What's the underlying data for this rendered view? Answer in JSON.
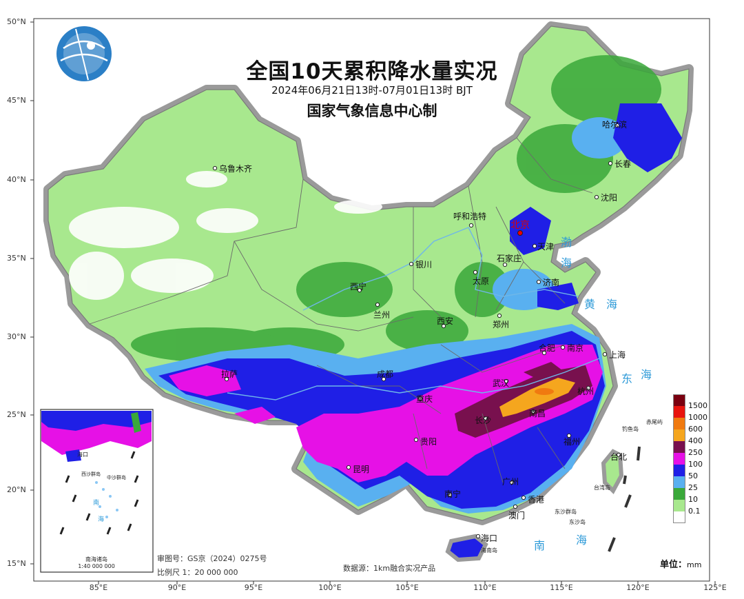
{
  "title": "全国10天累积降水量实况",
  "subtitle": "2024年06月21日13时-07月01日13时 BJT",
  "organization": "国家气象信息中心制",
  "legend": {
    "unit_label": "单位：",
    "unit": "mm",
    "levels": [
      {
        "label": "1500",
        "color": "#7a0010"
      },
      {
        "label": "1000",
        "color": "#e8140e"
      },
      {
        "label": "600",
        "color": "#f07a10"
      },
      {
        "label": "400",
        "color": "#f5a61e"
      },
      {
        "label": "250",
        "color": "#78104e"
      },
      {
        "label": "100",
        "color": "#e611e6"
      },
      {
        "label": "50",
        "color": "#1f1fe6"
      },
      {
        "label": "25",
        "color": "#59b0f0"
      },
      {
        "label": "10",
        "color": "#3aa83a"
      },
      {
        "label": "0.1",
        "color": "#a8e88e"
      }
    ],
    "bottom_color": "#ffffff"
  },
  "axes": {
    "lat_labels": [
      "50°N",
      "45°N",
      "40°N",
      "35°N",
      "30°N",
      "25°N",
      "20°N",
      "15°N"
    ],
    "lon_labels": [
      "85°E",
      "90°E",
      "95°E",
      "100°E",
      "105°E",
      "110°E",
      "115°E",
      "120°E",
      "125°E"
    ]
  },
  "cities": [
    {
      "name": "乌鲁木齐"
    },
    {
      "name": "呼和浩特"
    },
    {
      "name": "北京",
      "capital": true
    },
    {
      "name": "天津"
    },
    {
      "name": "哈尔滨"
    },
    {
      "name": "长春"
    },
    {
      "name": "沈阳"
    },
    {
      "name": "石家庄"
    },
    {
      "name": "太原"
    },
    {
      "name": "济南"
    },
    {
      "name": "银川"
    },
    {
      "name": "西宁"
    },
    {
      "name": "兰州"
    },
    {
      "name": "西安"
    },
    {
      "name": "郑州"
    },
    {
      "name": "合肥"
    },
    {
      "name": "南京"
    },
    {
      "name": "上海"
    },
    {
      "name": "杭州"
    },
    {
      "name": "武汉"
    },
    {
      "name": "长沙"
    },
    {
      "name": "南昌"
    },
    {
      "name": "福州"
    },
    {
      "name": "台北"
    },
    {
      "name": "成都"
    },
    {
      "name": "重庆"
    },
    {
      "name": "贵阳"
    },
    {
      "name": "昆明"
    },
    {
      "name": "南宁"
    },
    {
      "name": "广州"
    },
    {
      "name": "香港"
    },
    {
      "name": "澳门"
    },
    {
      "name": "海口"
    },
    {
      "name": "拉萨"
    }
  ],
  "seas": [
    {
      "name": "渤"
    },
    {
      "name": "海"
    },
    {
      "name": "黄"
    },
    {
      "name": "海"
    },
    {
      "name": "东"
    },
    {
      "name": "海"
    },
    {
      "name": "南"
    },
    {
      "name": "海"
    }
  ],
  "islands": [
    {
      "name": "钓鱼岛"
    },
    {
      "name": "赤尾屿"
    },
    {
      "name": "台湾岛"
    },
    {
      "name": "东沙群岛"
    },
    {
      "name": "东沙岛"
    },
    {
      "name": "海南岛"
    }
  ],
  "inset": {
    "caption_title": "南海诸岛",
    "caption_scale": "1:40 000 000",
    "labels": [
      "海口",
      "西沙群岛",
      "中沙群岛",
      "南",
      "海"
    ]
  },
  "footnotes": {
    "approval": "审图号：GS京（2024）0275号",
    "scale": "比例尺 1：20 000 000",
    "source": "数据源：1km融合实况产品"
  }
}
